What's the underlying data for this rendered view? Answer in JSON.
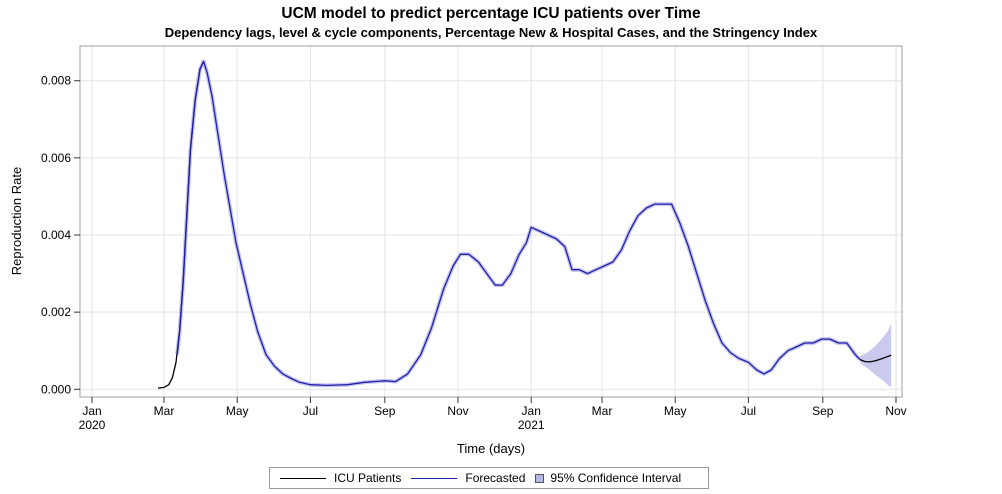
{
  "chart_data": {
    "type": "line",
    "title": "UCM model to predict percentage ICU patients over Time",
    "subtitle": "Dependency lags, level & cycle components, Percentage New & Hospital Cases, and the Stringency Index",
    "xlabel": "Time (days)",
    "ylabel": "Reproduction Rate",
    "x_axis": {
      "type": "date",
      "range": [
        "2019-12-22",
        "2021-11-06"
      ],
      "ticks": [
        {
          "date": "2020-01-01",
          "label": "Jan",
          "sublabel": "2020"
        },
        {
          "date": "2020-03-01",
          "label": "Mar",
          "sublabel": ""
        },
        {
          "date": "2020-05-01",
          "label": "May",
          "sublabel": ""
        },
        {
          "date": "2020-07-01",
          "label": "Jul",
          "sublabel": ""
        },
        {
          "date": "2020-09-01",
          "label": "Sep",
          "sublabel": ""
        },
        {
          "date": "2020-11-01",
          "label": "Nov",
          "sublabel": ""
        },
        {
          "date": "2021-01-01",
          "label": "Jan",
          "sublabel": "2021"
        },
        {
          "date": "2021-03-01",
          "label": "Mar",
          "sublabel": ""
        },
        {
          "date": "2021-05-01",
          "label": "May",
          "sublabel": ""
        },
        {
          "date": "2021-07-01",
          "label": "Jul",
          "sublabel": ""
        },
        {
          "date": "2021-09-01",
          "label": "Sep",
          "sublabel": ""
        },
        {
          "date": "2021-11-01",
          "label": "Nov",
          "sublabel": ""
        }
      ]
    },
    "y_axis": {
      "range": [
        -0.0002,
        0.0089
      ],
      "ticks": [
        {
          "value": 0.0,
          "label": "0.000"
        },
        {
          "value": 0.002,
          "label": "0.002"
        },
        {
          "value": 0.004,
          "label": "0.004"
        },
        {
          "value": 0.006,
          "label": "0.006"
        },
        {
          "value": 0.008,
          "label": "0.008"
        }
      ]
    },
    "grid": true,
    "legend_position": "bottom",
    "series": [
      {
        "name": "ICU Patients",
        "color": "#000000",
        "points": [
          [
            "2020-02-25",
            3e-05
          ],
          [
            "2020-03-01",
            5e-05
          ],
          [
            "2020-03-05",
            0.00012
          ],
          [
            "2020-03-08",
            0.0003
          ],
          [
            "2020-03-11",
            0.0007
          ],
          [
            "2020-03-14",
            0.0015
          ],
          [
            "2020-03-17",
            0.0028
          ],
          [
            "2020-03-20",
            0.0045
          ],
          [
            "2020-03-23",
            0.0062
          ],
          [
            "2020-03-27",
            0.0075
          ],
          [
            "2020-03-31",
            0.0083
          ],
          [
            "2020-04-03",
            0.0085
          ],
          [
            "2020-10-05",
            0.0
          ],
          [
            "2021-10-02",
            0.00077
          ],
          [
            "2021-10-06",
            0.00072
          ],
          [
            "2021-10-10",
            0.00071
          ],
          [
            "2021-10-15",
            0.00074
          ],
          [
            "2021-10-20",
            0.00079
          ],
          [
            "2021-10-25",
            0.00085
          ],
          [
            "2021-10-28",
            0.00088
          ]
        ]
      },
      {
        "name": "Forecasted",
        "color": "#1f1fa8",
        "points": [
          [
            "2020-03-12",
            0.0009
          ],
          [
            "2020-03-14",
            0.0015
          ],
          [
            "2020-03-17",
            0.0028
          ],
          [
            "2020-03-20",
            0.0045
          ],
          [
            "2020-03-23",
            0.0062
          ],
          [
            "2020-03-27",
            0.0075
          ],
          [
            "2020-03-31",
            0.0083
          ],
          [
            "2020-04-03",
            0.0085
          ],
          [
            "2020-04-06",
            0.0082
          ],
          [
            "2020-04-10",
            0.0076
          ],
          [
            "2020-04-15",
            0.0066
          ],
          [
            "2020-04-20",
            0.0056
          ],
          [
            "2020-04-25",
            0.0047
          ],
          [
            "2020-04-30",
            0.0038
          ],
          [
            "2020-05-06",
            0.003
          ],
          [
            "2020-05-12",
            0.0022
          ],
          [
            "2020-05-18",
            0.0015
          ],
          [
            "2020-05-25",
            0.0009
          ],
          [
            "2020-06-01",
            0.0006
          ],
          [
            "2020-06-08",
            0.0004
          ],
          [
            "2020-06-15",
            0.00028
          ],
          [
            "2020-06-22",
            0.00018
          ],
          [
            "2020-07-01",
            0.00012
          ],
          [
            "2020-07-15",
            0.0001
          ],
          [
            "2020-08-01",
            0.00012
          ],
          [
            "2020-08-15",
            0.00018
          ],
          [
            "2020-09-01",
            0.00022
          ],
          [
            "2020-09-10",
            0.0002
          ],
          [
            "2020-09-20",
            0.0004
          ],
          [
            "2020-10-01",
            0.0009
          ],
          [
            "2020-10-10",
            0.0016
          ],
          [
            "2020-10-20",
            0.0026
          ],
          [
            "2020-10-28",
            0.0032
          ],
          [
            "2020-11-03",
            0.0035
          ],
          [
            "2020-11-10",
            0.0035
          ],
          [
            "2020-11-18",
            0.0033
          ],
          [
            "2020-11-25",
            0.003
          ],
          [
            "2020-12-02",
            0.0027
          ],
          [
            "2020-12-08",
            0.0027
          ],
          [
            "2020-12-15",
            0.003
          ],
          [
            "2020-12-22",
            0.0035
          ],
          [
            "2020-12-28",
            0.0038
          ],
          [
            "2021-01-01",
            0.0042
          ],
          [
            "2021-01-08",
            0.0041
          ],
          [
            "2021-01-15",
            0.004
          ],
          [
            "2021-01-22",
            0.0039
          ],
          [
            "2021-01-29",
            0.0037
          ],
          [
            "2021-02-04",
            0.0031
          ],
          [
            "2021-02-10",
            0.0031
          ],
          [
            "2021-02-17",
            0.003
          ],
          [
            "2021-02-24",
            0.0031
          ],
          [
            "2021-03-03",
            0.0032
          ],
          [
            "2021-03-10",
            0.0033
          ],
          [
            "2021-03-17",
            0.0036
          ],
          [
            "2021-03-24",
            0.0041
          ],
          [
            "2021-03-31",
            0.0045
          ],
          [
            "2021-04-07",
            0.0047
          ],
          [
            "2021-04-14",
            0.0048
          ],
          [
            "2021-04-21",
            0.0048
          ],
          [
            "2021-04-28",
            0.0048
          ],
          [
            "2021-05-05",
            0.0043
          ],
          [
            "2021-05-12",
            0.0037
          ],
          [
            "2021-05-19",
            0.003
          ],
          [
            "2021-05-26",
            0.0023
          ],
          [
            "2021-06-02",
            0.0017
          ],
          [
            "2021-06-09",
            0.0012
          ],
          [
            "2021-06-16",
            0.00095
          ],
          [
            "2021-06-23",
            0.0008
          ],
          [
            "2021-07-01",
            0.0007
          ],
          [
            "2021-07-08",
            0.0005
          ],
          [
            "2021-07-14",
            0.0004
          ],
          [
            "2021-07-20",
            0.0005
          ],
          [
            "2021-07-27",
            0.0008
          ],
          [
            "2021-08-03",
            0.001
          ],
          [
            "2021-08-10",
            0.0011
          ],
          [
            "2021-08-17",
            0.0012
          ],
          [
            "2021-08-24",
            0.0012
          ],
          [
            "2021-08-31",
            0.0013
          ],
          [
            "2021-09-07",
            0.0013
          ],
          [
            "2021-09-14",
            0.0012
          ],
          [
            "2021-09-21",
            0.0012
          ],
          [
            "2021-09-28",
            0.0009
          ],
          [
            "2021-10-02",
            0.00077
          ]
        ]
      },
      {
        "name": "95% Confidence Interval",
        "color": "#b8b8e8",
        "band": [
          [
            "2021-10-02",
            0.00068,
            0.00086
          ],
          [
            "2021-10-08",
            0.00055,
            0.00095
          ],
          [
            "2021-10-14",
            0.0004,
            0.0011
          ],
          [
            "2021-10-20",
            0.00025,
            0.0013
          ],
          [
            "2021-10-25",
            0.00012,
            0.0015
          ],
          [
            "2021-10-28",
            6e-05,
            0.0017
          ]
        ]
      }
    ]
  },
  "legend": {
    "items": [
      {
        "label": "ICU Patients",
        "kind": "line",
        "color": "#000000"
      },
      {
        "label": "Forecasted",
        "kind": "line",
        "color": "#1f1fa8"
      },
      {
        "label": "95% Confidence Interval",
        "kind": "swatch",
        "color": "#b8b8e8"
      }
    ]
  }
}
